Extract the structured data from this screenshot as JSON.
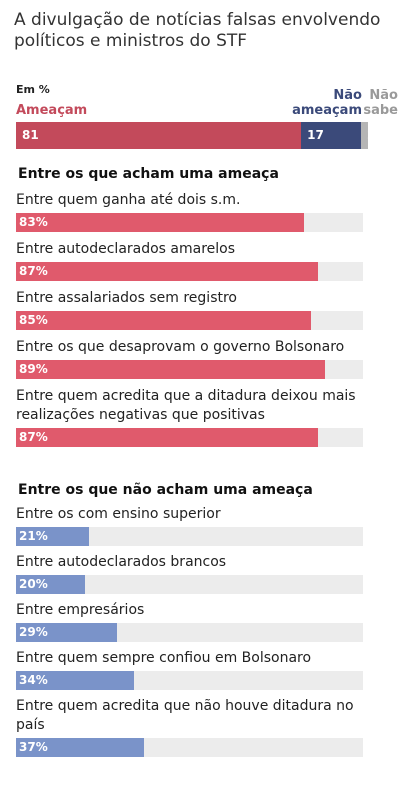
{
  "title": "A divulgação de notícias falsas envolvendo políticos e ministros do STF",
  "unit": "Em %",
  "colors": {
    "threat": "#c34a5b",
    "no_threat": "#3b4a7a",
    "dont_know": "#b5b5b5",
    "threat_bar": "#e05a6c",
    "no_threat_bar": "#7a93c9"
  },
  "chart_data": [
    {
      "type": "bar",
      "stacked": true,
      "orientation": "horizontal",
      "series": [
        {
          "name": "Ameaçam",
          "value": 81,
          "label": "81"
        },
        {
          "name": "Não ameaçam",
          "value": 17,
          "label": "17"
        },
        {
          "name": "Não sabe",
          "value": 2,
          "label": "2"
        }
      ]
    },
    {
      "type": "bar",
      "orientation": "horizontal",
      "title": "Entre os que acham uma ameaça",
      "categories": [
        "Entre quem ganha até dois s.m.",
        "Entre autodeclarados amarelos",
        "Entre assalariados sem registro",
        "Entre os que desaprovam o governo Bolsonaro",
        "Entre quem acredita que a ditadura deixou mais realizações negativas que positivas"
      ],
      "values": [
        83,
        87,
        85,
        89,
        87
      ],
      "value_labels": [
        "83%",
        "87%",
        "85%",
        "89%",
        "87%"
      ],
      "xlim": [
        0,
        100
      ]
    },
    {
      "type": "bar",
      "orientation": "horizontal",
      "title": "Entre os que não acham uma ameaça",
      "categories": [
        "Entre os com ensino superior",
        "Entre autodeclarados brancos",
        "Entre empresários",
        "Entre quem sempre confiou em Bolsonaro",
        "Entre quem acredita que não houve ditadura no país"
      ],
      "values": [
        21,
        20,
        29,
        34,
        37
      ],
      "value_labels": [
        "21%",
        "20%",
        "29%",
        "34%",
        "37%"
      ],
      "xlim": [
        0,
        100
      ]
    }
  ]
}
